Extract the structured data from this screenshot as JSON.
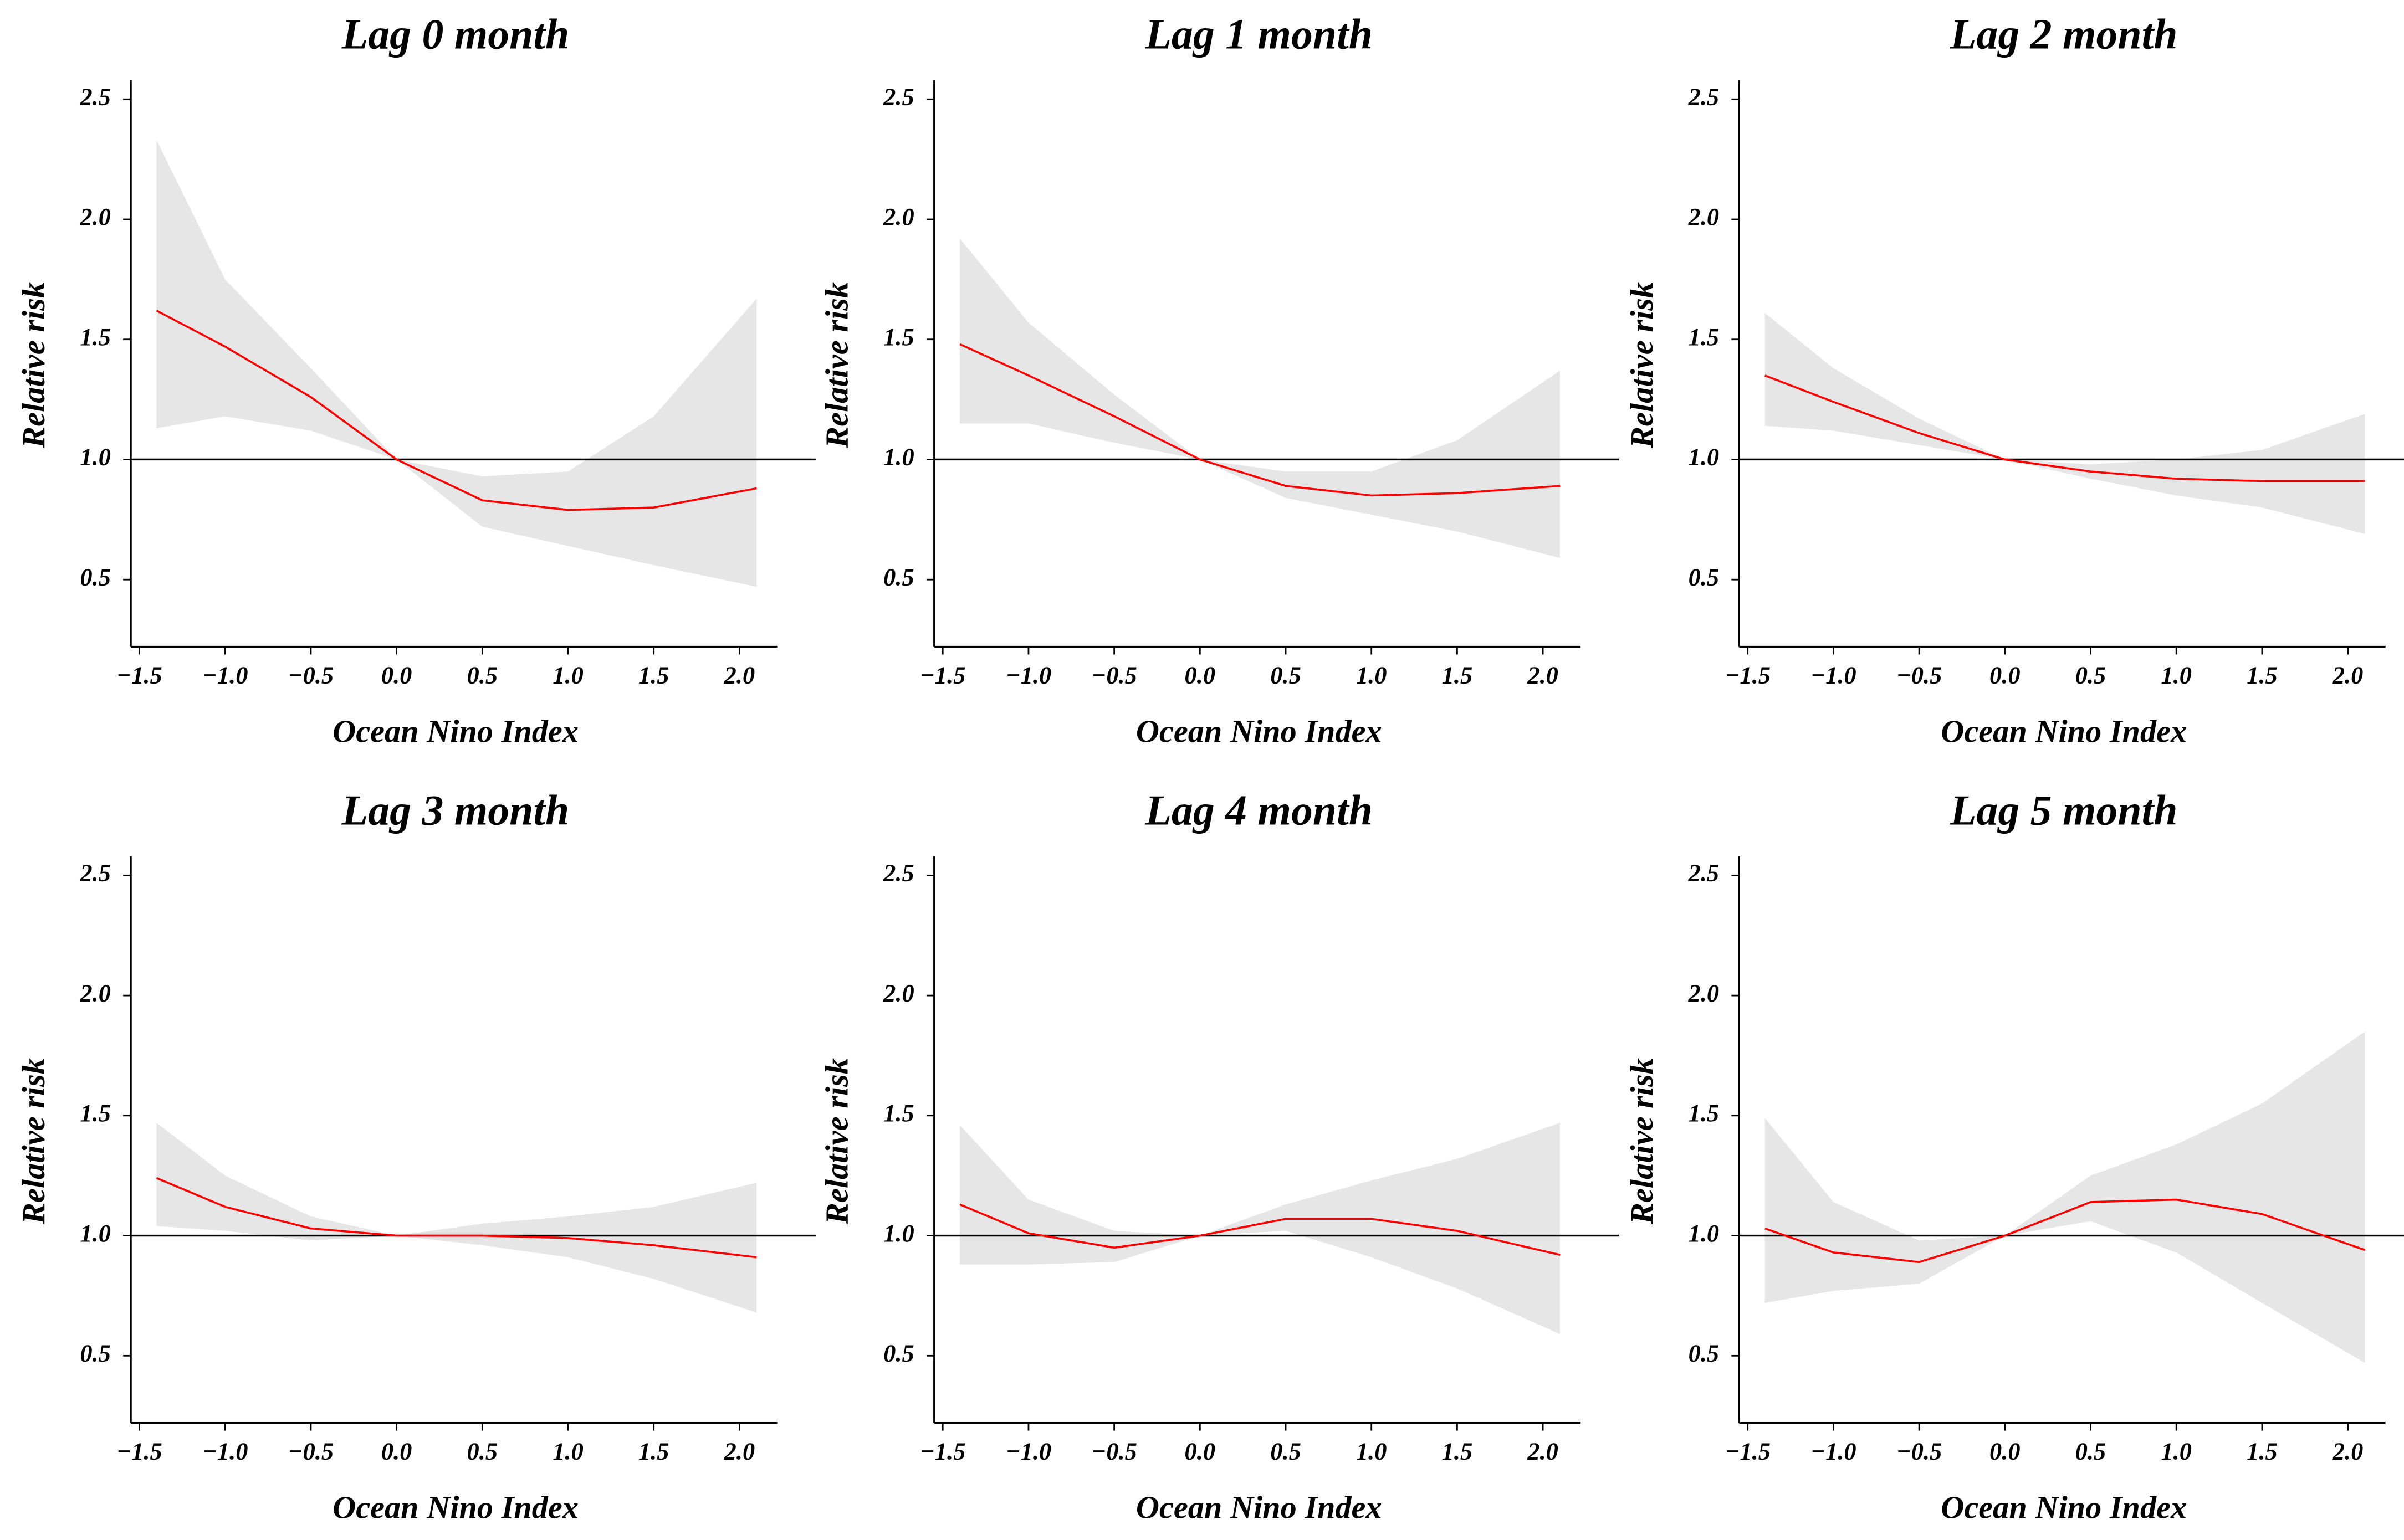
{
  "chart_data": [
    {
      "type": "line",
      "title": "Lag 0 month",
      "x_label": "Ocean Nino Index",
      "y_label": "Relative risk",
      "x": [
        -1.4,
        -1.0,
        -0.5,
        0,
        0.5,
        1.0,
        1.5,
        2.1
      ],
      "values": [
        1.62,
        1.47,
        1.26,
        1.0,
        0.83,
        0.79,
        0.8,
        0.88
      ],
      "ci_lower": [
        1.13,
        1.18,
        1.12,
        1.0,
        0.72,
        0.64,
        0.56,
        0.47
      ],
      "ci_upper": [
        2.33,
        1.75,
        1.38,
        1.0,
        0.93,
        0.95,
        1.18,
        1.67
      ],
      "color": "#ff0000",
      "band_color": "#e6e6e6",
      "hline": 1,
      "xlim": [
        -1.55,
        2.22
      ],
      "ylim": [
        0.22,
        2.58
      ],
      "xticks": [
        {
          "value": -1.5,
          "label": "−1.5"
        },
        {
          "value": -1,
          "label": "−1.0"
        },
        {
          "value": -0.5,
          "label": "−0.5"
        },
        {
          "value": 0,
          "label": "0.0"
        },
        0.5,
        {
          "value": 1,
          "label": "1.0"
        },
        1.5,
        {
          "value": 2,
          "label": "2.0"
        }
      ],
      "yticks": [
        0.5,
        {
          "value": 1,
          "label": "1.0"
        },
        1.5,
        {
          "value": 2,
          "label": "2.0"
        },
        2.5
      ]
    },
    {
      "type": "line",
      "title": "Lag 1 month",
      "x_label": "Ocean Nino Index",
      "y_label": "Relative risk",
      "x": [
        -1.4,
        -1.0,
        -0.5,
        0,
        0.5,
        1.0,
        1.5,
        2.1
      ],
      "values": [
        1.48,
        1.35,
        1.18,
        1.0,
        0.89,
        0.85,
        0.86,
        0.89
      ],
      "ci_lower": [
        1.15,
        1.15,
        1.07,
        1.0,
        0.84,
        0.77,
        0.7,
        0.59
      ],
      "ci_upper": [
        1.92,
        1.57,
        1.27,
        1.0,
        0.95,
        0.95,
        1.08,
        1.37
      ],
      "color": "#ff0000",
      "band_color": "#e6e6e6",
      "hline": 1,
      "xlim": [
        -1.55,
        2.22
      ],
      "ylim": [
        0.22,
        2.58
      ],
      "xticks": [
        {
          "value": -1.5,
          "label": "−1.5"
        },
        {
          "value": -1,
          "label": "−1.0"
        },
        {
          "value": -0.5,
          "label": "−0.5"
        },
        {
          "value": 0,
          "label": "0.0"
        },
        0.5,
        {
          "value": 1,
          "label": "1.0"
        },
        1.5,
        {
          "value": 2,
          "label": "2.0"
        }
      ],
      "yticks": [
        0.5,
        {
          "value": 1,
          "label": "1.0"
        },
        1.5,
        {
          "value": 2,
          "label": "2.0"
        },
        2.5
      ]
    },
    {
      "type": "line",
      "title": "Lag 2 month",
      "x_label": "Ocean Nino Index",
      "y_label": "Relative risk",
      "x": [
        -1.4,
        -1.0,
        -0.5,
        0,
        0.5,
        1.0,
        1.5,
        2.1
      ],
      "values": [
        1.35,
        1.24,
        1.11,
        1.0,
        0.95,
        0.92,
        0.91,
        0.91
      ],
      "ci_lower": [
        1.14,
        1.12,
        1.06,
        1.0,
        0.92,
        0.85,
        0.8,
        0.69
      ],
      "ci_upper": [
        1.61,
        1.38,
        1.17,
        1.0,
        0.98,
        1.0,
        1.04,
        1.19
      ],
      "color": "#ff0000",
      "band_color": "#e6e6e6",
      "hline": 1,
      "xlim": [
        -1.55,
        2.22
      ],
      "ylim": [
        0.22,
        2.58
      ],
      "xticks": [
        {
          "value": -1.5,
          "label": "−1.5"
        },
        {
          "value": -1,
          "label": "−1.0"
        },
        {
          "value": -0.5,
          "label": "−0.5"
        },
        {
          "value": 0,
          "label": "0.0"
        },
        0.5,
        {
          "value": 1,
          "label": "1.0"
        },
        1.5,
        {
          "value": 2,
          "label": "2.0"
        }
      ],
      "yticks": [
        0.5,
        {
          "value": 1,
          "label": "1.0"
        },
        1.5,
        {
          "value": 2,
          "label": "2.0"
        },
        2.5
      ]
    },
    {
      "type": "line",
      "title": "Lag 3 month",
      "x_label": "Ocean Nino Index",
      "y_label": "Relative risk",
      "x": [
        -1.4,
        -1.0,
        -0.5,
        0,
        0.5,
        1.0,
        1.5,
        2.1
      ],
      "values": [
        1.24,
        1.12,
        1.03,
        1.0,
        1.0,
        0.99,
        0.96,
        0.91
      ],
      "ci_lower": [
        1.04,
        1.02,
        0.98,
        1.0,
        0.96,
        0.91,
        0.82,
        0.68
      ],
      "ci_upper": [
        1.47,
        1.25,
        1.08,
        1.0,
        1.05,
        1.08,
        1.12,
        1.22
      ],
      "color": "#ff0000",
      "band_color": "#e6e6e6",
      "hline": 1,
      "xlim": [
        -1.55,
        2.22
      ],
      "ylim": [
        0.22,
        2.58
      ],
      "xticks": [
        {
          "value": -1.5,
          "label": "−1.5"
        },
        {
          "value": -1,
          "label": "−1.0"
        },
        {
          "value": -0.5,
          "label": "−0.5"
        },
        {
          "value": 0,
          "label": "0.0"
        },
        0.5,
        {
          "value": 1,
          "label": "1.0"
        },
        1.5,
        {
          "value": 2,
          "label": "2.0"
        }
      ],
      "yticks": [
        0.5,
        {
          "value": 1,
          "label": "1.0"
        },
        1.5,
        {
          "value": 2,
          "label": "2.0"
        },
        2.5
      ]
    },
    {
      "type": "line",
      "title": "Lag 4 month",
      "x_label": "Ocean Nino Index",
      "y_label": "Relative risk",
      "x": [
        -1.4,
        -1.0,
        -0.5,
        0,
        0.5,
        1.0,
        1.5,
        2.1
      ],
      "values": [
        1.13,
        1.01,
        0.95,
        1.0,
        1.07,
        1.07,
        1.02,
        0.92
      ],
      "ci_lower": [
        0.88,
        0.88,
        0.89,
        1.0,
        1.02,
        0.91,
        0.78,
        0.59
      ],
      "ci_upper": [
        1.46,
        1.15,
        1.02,
        1.0,
        1.13,
        1.23,
        1.32,
        1.47
      ],
      "color": "#ff0000",
      "band_color": "#e6e6e6",
      "hline": 1,
      "xlim": [
        -1.55,
        2.22
      ],
      "ylim": [
        0.22,
        2.58
      ],
      "xticks": [
        {
          "value": -1.5,
          "label": "−1.5"
        },
        {
          "value": -1,
          "label": "−1.0"
        },
        {
          "value": -0.5,
          "label": "−0.5"
        },
        {
          "value": 0,
          "label": "0.0"
        },
        0.5,
        {
          "value": 1,
          "label": "1.0"
        },
        1.5,
        {
          "value": 2,
          "label": "2.0"
        }
      ],
      "yticks": [
        0.5,
        {
          "value": 1,
          "label": "1.0"
        },
        1.5,
        {
          "value": 2,
          "label": "2.0"
        },
        2.5
      ]
    },
    {
      "type": "line",
      "title": "Lag 5 month",
      "x_label": "Ocean Nino Index",
      "y_label": "Relative risk",
      "x": [
        -1.4,
        -1.0,
        -0.5,
        0,
        0.5,
        1.0,
        1.5,
        2.1
      ],
      "values": [
        1.03,
        0.93,
        0.89,
        1.0,
        1.14,
        1.15,
        1.09,
        0.94
      ],
      "ci_lower": [
        0.72,
        0.77,
        0.8,
        1.0,
        1.06,
        0.93,
        0.72,
        0.47
      ],
      "ci_upper": [
        1.49,
        1.14,
        0.98,
        1.0,
        1.25,
        1.38,
        1.55,
        1.85
      ],
      "color": "#ff0000",
      "band_color": "#e6e6e6",
      "hline": 1,
      "xlim": [
        -1.55,
        2.22
      ],
      "ylim": [
        0.22,
        2.58
      ],
      "xticks": [
        {
          "value": -1.5,
          "label": "−1.5"
        },
        {
          "value": -1,
          "label": "−1.0"
        },
        {
          "value": -0.5,
          "label": "−0.5"
        },
        {
          "value": 0,
          "label": "0.0"
        },
        0.5,
        {
          "value": 1,
          "label": "1.0"
        },
        1.5,
        {
          "value": 2,
          "label": "2.0"
        }
      ],
      "yticks": [
        0.5,
        {
          "value": 1,
          "label": "1.0"
        },
        1.5,
        {
          "value": 2,
          "label": "2.0"
        },
        2.5
      ]
    }
  ]
}
